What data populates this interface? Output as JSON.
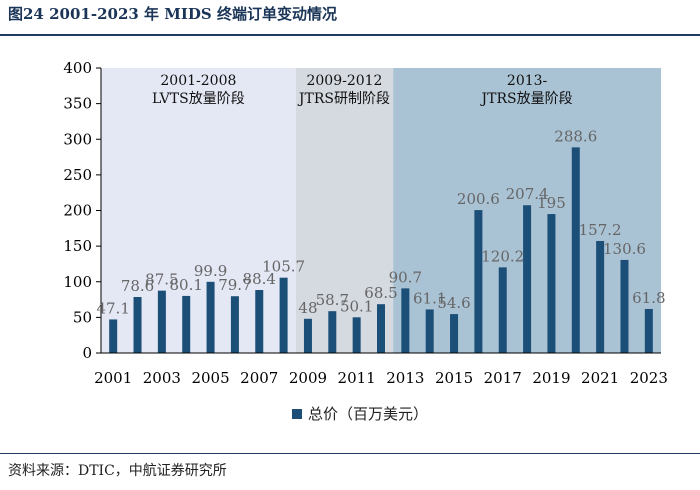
{
  "figure": {
    "title": "图24  2001-2023 年 MIDS 终端订单变动情况",
    "source": "资料来源：DTIC，中航证券研究所"
  },
  "colors": {
    "bar": "#1b4f78",
    "phase1_bg": "#e4e7f4",
    "phase2_bg": "#d5d9e0",
    "phase3_bg": "#a9c2d4",
    "label": "#666666",
    "axis": "#000000"
  },
  "chart_data": {
    "type": "bar",
    "title": "",
    "xlabel": "",
    "ylabel": "",
    "ylim": [
      0,
      400
    ],
    "yticks": [
      0,
      50,
      100,
      150,
      200,
      250,
      300,
      350,
      400
    ],
    "categories": [
      "2001",
      "2002",
      "2003",
      "2004",
      "2005",
      "2006",
      "2007",
      "2008",
      "2009",
      "2010",
      "2011",
      "2012",
      "2013",
      "2014",
      "2015",
      "2016",
      "2017",
      "2018",
      "2019",
      "2020",
      "2021",
      "2022",
      "2023"
    ],
    "xtick_labels": [
      "2001",
      "2003",
      "2005",
      "2007",
      "2009",
      "2011",
      "2013",
      "2015",
      "2017",
      "2019",
      "2021",
      "2023"
    ],
    "series": [
      {
        "name": "总价（百万美元）",
        "values": [
          47.1,
          78.6,
          87.5,
          80.1,
          99.9,
          79.7,
          88.4,
          105.7,
          48,
          58.7,
          50.1,
          68.5,
          90.7,
          61.1,
          54.6,
          200.6,
          120.2,
          207.4,
          195,
          288.6,
          157.2,
          130.6,
          61.8
        ],
        "data_labels": [
          "47.1",
          "78.6",
          "87.5",
          "80.1",
          "99.9",
          "79.7",
          "88.4",
          "105.7",
          "48",
          "58.7",
          "50.1",
          "68.5",
          "90.7",
          "61.1",
          "54.6",
          "200.6",
          "120.2",
          "207.4",
          "195",
          "288.6",
          "157.2",
          "130.6",
          "61.8"
        ]
      }
    ],
    "phases": [
      {
        "label_line1": "2001-2008",
        "label_line2": "LVTS放量阶段",
        "start": "2001",
        "end": "2008"
      },
      {
        "label_line1": "2009-2012",
        "label_line2": "JTRS研制阶段",
        "start": "2009",
        "end": "2012"
      },
      {
        "label_line1": "2013-",
        "label_line2": "JTRS放量阶段",
        "start": "2013",
        "end": "2023"
      }
    ],
    "legend_position": "bottom-center"
  }
}
